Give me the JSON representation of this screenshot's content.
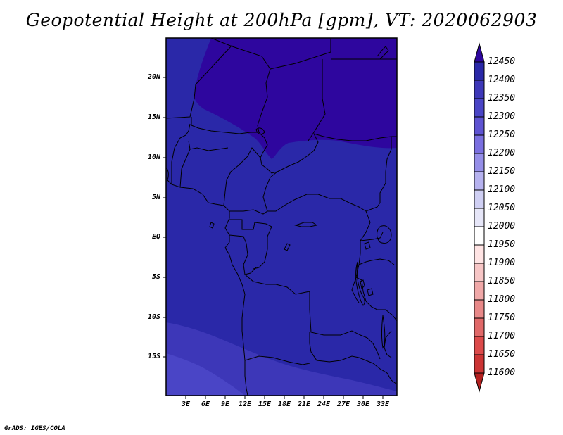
{
  "title": "Geopotential Height at 200hPa [gpm], VT: 2020062903",
  "credit": "GrADS: IGES/COLA",
  "map": {
    "lat_labels": [
      "20N",
      "15N",
      "10N",
      "5N",
      "EQ",
      "5S",
      "10S",
      "15S"
    ],
    "lon_labels": [
      "3E",
      "6E",
      "9E",
      "12E",
      "15E",
      "18E",
      "21E",
      "24E",
      "27E",
      "30E",
      "33E"
    ],
    "field_colors": {
      "12350_12400": "#2a28a8",
      "12400_12450": "#2e069e",
      "12300_12350": "#3d37b8",
      "12250_12300": "#4a45c6"
    }
  },
  "colorbar": {
    "labels": [
      "12450",
      "12400",
      "12350",
      "12300",
      "12250",
      "12200",
      "12150",
      "12100",
      "12050",
      "12000",
      "11950",
      "11900",
      "11850",
      "11800",
      "11750",
      "11700",
      "11650",
      "11600"
    ],
    "colors": [
      "#b3201f",
      "#cc3434",
      "#dc4a4a",
      "#e06868",
      "#e88888",
      "#f0a8a8",
      "#f7c6c6",
      "#ffe4e4",
      "#ffffff",
      "#e6e6f8",
      "#cfcff3",
      "#b6b2ef",
      "#958ee8",
      "#7a6fe0",
      "#5e53d2",
      "#4a45c6",
      "#3d37b8",
      "#2a28a8",
      "#2e069e"
    ]
  }
}
